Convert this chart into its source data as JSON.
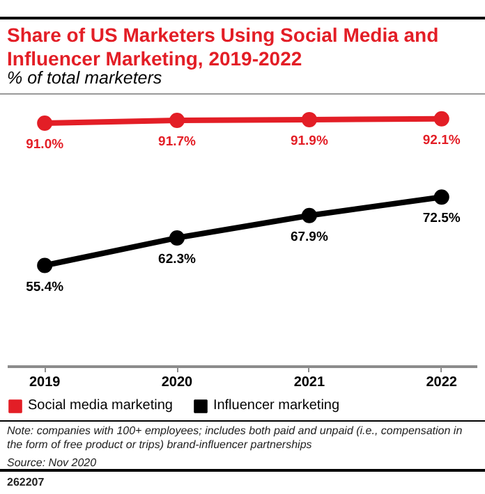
{
  "chart_data": {
    "type": "line",
    "title": "Share of US Marketers Using Social Media and Influencer Marketing, 2019-2022",
    "subtitle": "% of total marketers",
    "categories": [
      "2019",
      "2020",
      "2021",
      "2022"
    ],
    "series": [
      {
        "name": "Social media marketing",
        "color": "#e31e26",
        "values": [
          91.0,
          91.7,
          91.9,
          92.1
        ],
        "value_labels": [
          "91.0%",
          "91.7%",
          "91.9%",
          "92.1%"
        ]
      },
      {
        "name": "Influencer marketing",
        "color": "#000000",
        "values": [
          55.4,
          62.3,
          67.9,
          72.5
        ],
        "value_labels": [
          "55.4%",
          "62.3%",
          "67.9%",
          "72.5%"
        ]
      }
    ],
    "marker": "circle",
    "line_style": "solid",
    "grid": false,
    "legend": "bottom",
    "tick_labels": "x",
    "annotations": [
      "Note: companies with 100+ employees; includes both paid and unpaid (i.e., compensation in the form of free product or trips) brand-influencer partnerships",
      "Source: Nov 2020",
      "262207"
    ]
  }
}
